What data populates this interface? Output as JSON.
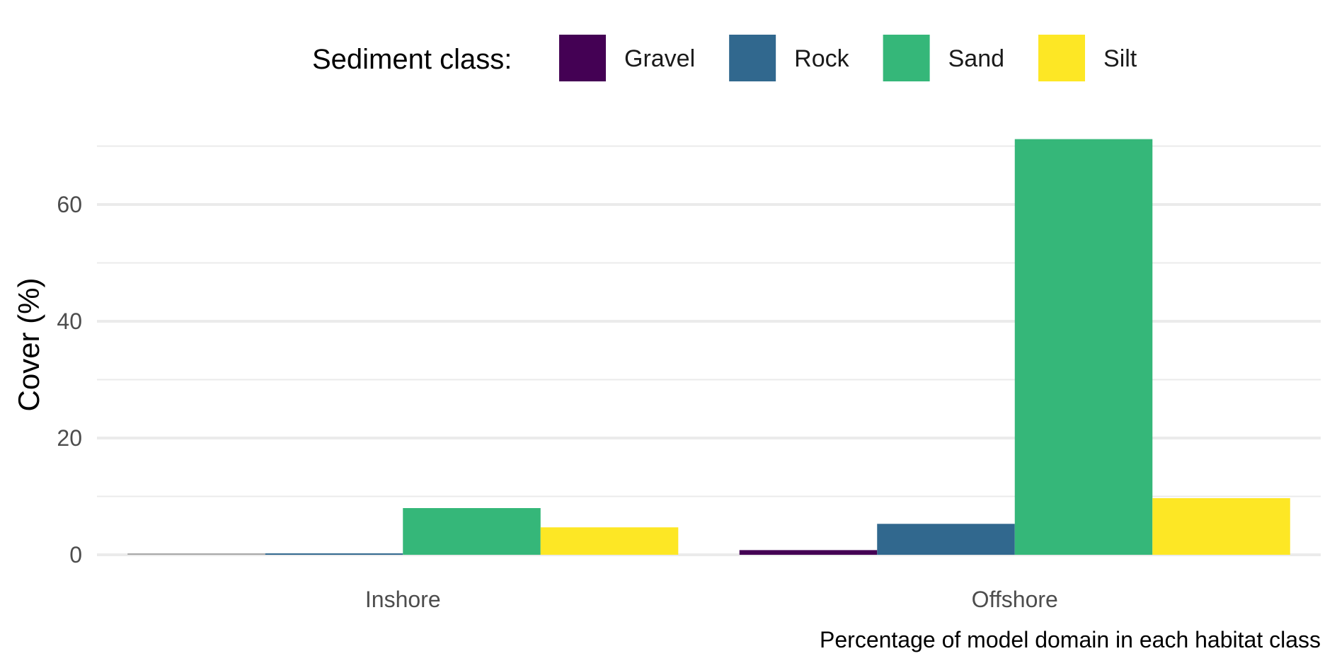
{
  "chart_data": {
    "type": "bar",
    "categories": [
      "Inshore",
      "Offshore"
    ],
    "series": [
      {
        "name": "Gravel",
        "color": "#440154",
        "values": [
          0.0,
          0.8
        ]
      },
      {
        "name": "Rock",
        "color": "#31688E",
        "values": [
          0.2,
          5.3
        ]
      },
      {
        "name": "Sand",
        "color": "#35B779",
        "values": [
          8.0,
          71.2
        ]
      },
      {
        "name": "Silt",
        "color": "#FDE725",
        "values": [
          4.7,
          9.7
        ]
      }
    ],
    "legend_title": "Sediment class:",
    "legend_position": "top",
    "ylabel": "Cover (%)",
    "xlabel": "",
    "caption": "Percentage of model domain in each habitat class",
    "ylim": [
      0,
      72
    ],
    "yticks": [
      0,
      20,
      40,
      60
    ],
    "grid": true,
    "grid_color": "#ebebeb"
  }
}
